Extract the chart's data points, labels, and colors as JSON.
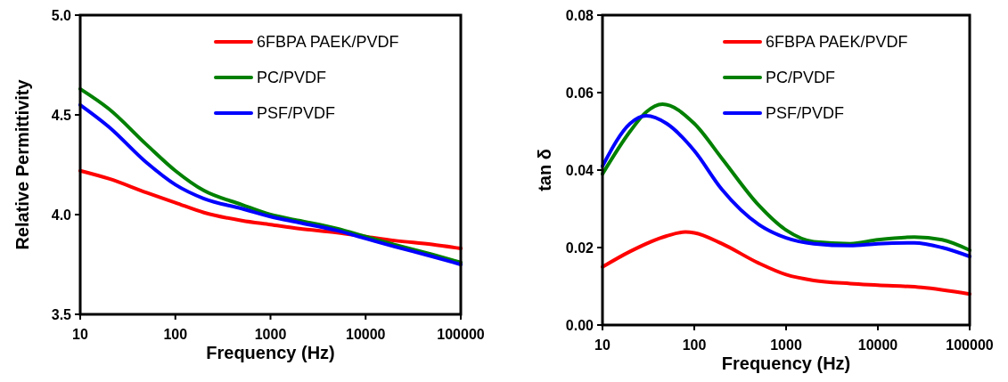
{
  "chart_data": [
    {
      "type": "line",
      "xlabel": "Frequency (Hz)",
      "ylabel": "Relative Permittivity",
      "log": "x",
      "xlim": [
        10,
        100000
      ],
      "xticks": [
        10,
        100,
        1000,
        10000,
        100000
      ],
      "ylim": [
        3.5,
        5.0
      ],
      "yticks": [
        {
          "value": 3.5,
          "label": "3.5"
        },
        {
          "value": 4.0,
          "label": "4.0"
        },
        {
          "value": 4.5,
          "label": "4.5"
        },
        {
          "value": 5.0,
          "label": "5.0"
        }
      ],
      "grid": false,
      "legend": "top right",
      "marker": "none",
      "line_style": "solid",
      "x": [
        10,
        20,
        50,
        100,
        200,
        500,
        1000,
        2000,
        5000,
        10000,
        20000,
        50000,
        100000
      ],
      "series": [
        {
          "name": "6FBPA PAEK/PVDF",
          "color": "#ff0000",
          "values": [
            4.22,
            4.18,
            4.11,
            4.06,
            4.01,
            3.97,
            3.95,
            3.93,
            3.91,
            3.89,
            3.87,
            3.85,
            3.83
          ]
        },
        {
          "name": "PC/PVDF",
          "color": "#008000",
          "values": [
            4.63,
            4.53,
            4.35,
            4.22,
            4.12,
            4.05,
            4.0,
            3.97,
            3.93,
            3.89,
            3.85,
            3.8,
            3.76
          ]
        },
        {
          "name": "PSF/PVDF",
          "color": "#0000ff",
          "values": [
            4.55,
            4.44,
            4.26,
            4.15,
            4.08,
            4.03,
            3.99,
            3.96,
            3.92,
            3.88,
            3.84,
            3.79,
            3.75
          ]
        }
      ]
    },
    {
      "type": "line",
      "xlabel": "Frequency (Hz)",
      "ylabel": "tan δ",
      "log": "x",
      "xlim": [
        10,
        100000
      ],
      "xticks": [
        10,
        100,
        1000,
        10000,
        100000
      ],
      "ylim": [
        0,
        0.08
      ],
      "yticks": [
        {
          "value": 0,
          "label": "0.00"
        },
        {
          "value": 0.02,
          "label": "0.02"
        },
        {
          "value": 0.04,
          "label": "0.04"
        },
        {
          "value": 0.06,
          "label": "0.06"
        },
        {
          "value": 0.08,
          "label": "0.08"
        }
      ],
      "grid": false,
      "legend": "top right",
      "marker": "none",
      "line_style": "solid",
      "series": [
        {
          "name": "6FBPA PAEK/PVDF",
          "color": "#ff0000",
          "x": [
            10,
            20,
            50,
            80,
            100,
            200,
            500,
            1000,
            2000,
            5000,
            10000,
            30000,
            100000
          ],
          "values": [
            0.015,
            0.019,
            0.023,
            0.024,
            0.0238,
            0.021,
            0.016,
            0.013,
            0.0115,
            0.0107,
            0.0103,
            0.0097,
            0.008
          ]
        },
        {
          "name": "PC/PVDF",
          "color": "#008000",
          "x": [
            10,
            20,
            30,
            45,
            100,
            200,
            500,
            1000,
            2000,
            5000,
            10000,
            25000,
            50000,
            100000
          ],
          "values": [
            0.039,
            0.05,
            0.055,
            0.057,
            0.052,
            0.043,
            0.031,
            0.0245,
            0.0215,
            0.021,
            0.022,
            0.0227,
            0.022,
            0.0193
          ]
        },
        {
          "name": "PSF/PVDF",
          "color": "#0000ff",
          "x": [
            10,
            20,
            30,
            50,
            100,
            200,
            500,
            1000,
            2000,
            5000,
            10000,
            25000,
            50000,
            100000
          ],
          "values": [
            0.041,
            0.052,
            0.054,
            0.052,
            0.045,
            0.035,
            0.026,
            0.0225,
            0.021,
            0.0205,
            0.021,
            0.0212,
            0.02,
            0.0177
          ]
        }
      ]
    }
  ]
}
